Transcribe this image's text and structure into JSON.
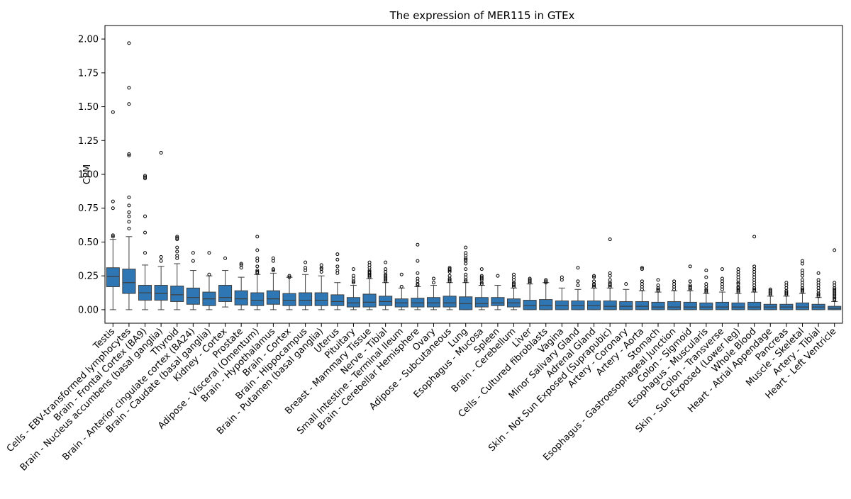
{
  "chart_data": {
    "type": "box",
    "title": "The expression of MER115 in GTEx",
    "xlabel": "",
    "ylabel": "CPM",
    "ylim": [
      -0.1,
      2.1
    ],
    "yticks": [
      0.0,
      0.25,
      0.5,
      0.75,
      1.0,
      1.25,
      1.5,
      1.75,
      2.0
    ],
    "ytick_labels": [
      "0.00",
      "0.25",
      "0.50",
      "0.75",
      "1.00",
      "1.25",
      "1.50",
      "1.75",
      "2.00"
    ],
    "box_color": "#2f77b4",
    "grid": false,
    "legend": "none",
    "categories": [
      "Testis",
      "Cells - EBV-transformed lymphocytes",
      "Brain - Frontal Cortex (BA9)",
      "Brain - Nucleus accumbens (basal ganglia)",
      "Thyroid",
      "Brain - Anterior cingulate cortex (BA24)",
      "Brain - Caudate (basal ganglia)",
      "Kidney - Cortex",
      "Prostate",
      "Adipose - Visceral (Omentum)",
      "Brain - Hypothalamus",
      "Brain - Cortex",
      "Brain - Hippocampus",
      "Brain - Putamen (basal ganglia)",
      "Uterus",
      "Pituitary",
      "Breast - Mammary Tissue",
      "Nerve - Tibial",
      "Small Intestine - Terminal Ileum",
      "Brain - Cerebellar Hemisphere",
      "Ovary",
      "Adipose - Subcutaneous",
      "Lung",
      "Esophagus - Mucosa",
      "Spleen",
      "Brain - Cerebellum",
      "Liver",
      "Cells - Cultured fibroblasts",
      "Vagina",
      "Minor Salivary Gland",
      "Adrenal Gland",
      "Skin - Not Sun Exposed (Suprapubic)",
      "Artery - Coronary",
      "Artery - Aorta",
      "Stomach",
      "Esophagus - Gastroesophageal Junction",
      "Colon - Sigmoid",
      "Esophagus - Muscularis",
      "Colon - Transverse",
      "Skin - Sun Exposed (Lower leg)",
      "Whole Blood",
      "Heart - Atrial Appendage",
      "Pancreas",
      "Muscle - Skeletal",
      "Artery - Tibial",
      "Heart - Left Ventricle"
    ],
    "boxes": [
      {
        "min": 0.0,
        "q1": 0.17,
        "median": 0.245,
        "q3": 0.31,
        "max": 0.52,
        "outliers": [
          1.46,
          0.8,
          0.75,
          0.55,
          0.54
        ]
      },
      {
        "min": 0.0,
        "q1": 0.12,
        "median": 0.2,
        "q3": 0.3,
        "max": 0.54,
        "outliers": [
          1.97,
          1.64,
          1.52,
          1.15,
          1.14,
          0.83,
          0.77,
          0.72,
          0.69,
          0.65,
          0.6
        ]
      },
      {
        "min": 0.0,
        "q1": 0.07,
        "median": 0.125,
        "q3": 0.18,
        "max": 0.33,
        "outliers": [
          0.99,
          0.98,
          0.97,
          0.69,
          0.57,
          0.42
        ]
      },
      {
        "min": 0.0,
        "q1": 0.07,
        "median": 0.12,
        "q3": 0.18,
        "max": 0.32,
        "outliers": [
          1.16,
          0.39,
          0.36
        ]
      },
      {
        "min": 0.0,
        "q1": 0.06,
        "median": 0.11,
        "q3": 0.175,
        "max": 0.34,
        "outliers": [
          0.54,
          0.53,
          0.52,
          0.46,
          0.43,
          0.4,
          0.38
        ]
      },
      {
        "min": 0.0,
        "q1": 0.04,
        "median": 0.09,
        "q3": 0.16,
        "max": 0.29,
        "outliers": [
          0.42,
          0.36
        ]
      },
      {
        "min": 0.0,
        "q1": 0.03,
        "median": 0.08,
        "q3": 0.13,
        "max": 0.25,
        "outliers": [
          0.42,
          0.26
        ]
      },
      {
        "min": 0.02,
        "q1": 0.06,
        "median": 0.09,
        "q3": 0.18,
        "max": 0.29,
        "outliers": [
          0.38
        ]
      },
      {
        "min": 0.0,
        "q1": 0.035,
        "median": 0.08,
        "q3": 0.14,
        "max": 0.24,
        "outliers": [
          0.34,
          0.33,
          0.31
        ]
      },
      {
        "min": 0.0,
        "q1": 0.03,
        "median": 0.07,
        "q3": 0.125,
        "max": 0.26,
        "outliers": [
          0.54,
          0.44,
          0.38,
          0.36,
          0.32,
          0.29,
          0.28,
          0.27
        ]
      },
      {
        "min": 0.0,
        "q1": 0.04,
        "median": 0.08,
        "q3": 0.14,
        "max": 0.27,
        "outliers": [
          0.38,
          0.36,
          0.3,
          0.29
        ]
      },
      {
        "min": 0.0,
        "q1": 0.03,
        "median": 0.07,
        "q3": 0.12,
        "max": 0.24,
        "outliers": [
          0.25,
          0.24
        ]
      },
      {
        "min": 0.0,
        "q1": 0.03,
        "median": 0.07,
        "q3": 0.125,
        "max": 0.26,
        "outliers": [
          0.35,
          0.31,
          0.29
        ]
      },
      {
        "min": 0.0,
        "q1": 0.03,
        "median": 0.07,
        "q3": 0.125,
        "max": 0.25,
        "outliers": [
          0.33,
          0.31,
          0.3,
          0.28
        ]
      },
      {
        "min": 0.0,
        "q1": 0.03,
        "median": 0.06,
        "q3": 0.11,
        "max": 0.2,
        "outliers": [
          0.41,
          0.37,
          0.32,
          0.29,
          0.27
        ]
      },
      {
        "min": 0.0,
        "q1": 0.02,
        "median": 0.05,
        "q3": 0.09,
        "max": 0.18,
        "outliers": [
          0.3,
          0.25,
          0.23,
          0.21,
          0.2
        ]
      },
      {
        "min": 0.0,
        "q1": 0.02,
        "median": 0.055,
        "q3": 0.115,
        "max": 0.23,
        "outliers": [
          0.35,
          0.33,
          0.31,
          0.29,
          0.28,
          0.27,
          0.26,
          0.25,
          0.24
        ]
      },
      {
        "min": 0.0,
        "q1": 0.03,
        "median": 0.06,
        "q3": 0.1,
        "max": 0.2,
        "outliers": [
          0.35,
          0.3,
          0.28,
          0.26,
          0.25,
          0.24,
          0.23,
          0.22,
          0.21
        ]
      },
      {
        "min": 0.0,
        "q1": 0.02,
        "median": 0.05,
        "q3": 0.08,
        "max": 0.16,
        "outliers": [
          0.26,
          0.17
        ]
      },
      {
        "min": 0.0,
        "q1": 0.02,
        "median": 0.05,
        "q3": 0.085,
        "max": 0.17,
        "outliers": [
          0.48,
          0.36,
          0.27,
          0.23,
          0.21,
          0.19,
          0.18
        ]
      },
      {
        "min": 0.0,
        "q1": 0.02,
        "median": 0.05,
        "q3": 0.09,
        "max": 0.18,
        "outliers": [
          0.23,
          0.2
        ]
      },
      {
        "min": 0.0,
        "q1": 0.02,
        "median": 0.05,
        "q3": 0.1,
        "max": 0.2,
        "outliers": [
          0.31,
          0.3,
          0.29,
          0.28,
          0.25,
          0.23,
          0.22,
          0.21
        ]
      },
      {
        "min": 0.0,
        "q1": 0.0,
        "median": 0.045,
        "q3": 0.095,
        "max": 0.2,
        "outliers": [
          0.46,
          0.42,
          0.4,
          0.38,
          0.37,
          0.36,
          0.34,
          0.3,
          0.26,
          0.24,
          0.22,
          0.21
        ]
      },
      {
        "min": 0.0,
        "q1": 0.02,
        "median": 0.045,
        "q3": 0.09,
        "max": 0.18,
        "outliers": [
          0.3,
          0.25,
          0.24,
          0.23,
          0.22,
          0.2,
          0.19
        ]
      },
      {
        "min": 0.0,
        "q1": 0.03,
        "median": 0.05,
        "q3": 0.09,
        "max": 0.18,
        "outliers": [
          0.25
        ]
      },
      {
        "min": 0.0,
        "q1": 0.02,
        "median": 0.05,
        "q3": 0.08,
        "max": 0.16,
        "outliers": [
          0.26,
          0.24,
          0.22,
          0.2,
          0.19,
          0.18,
          0.17
        ]
      },
      {
        "min": 0.0,
        "q1": 0.0,
        "median": 0.03,
        "q3": 0.07,
        "max": 0.19,
        "outliers": [
          0.23,
          0.22,
          0.21,
          0.2
        ]
      },
      {
        "min": 0.0,
        "q1": 0.0,
        "median": 0.03,
        "q3": 0.075,
        "max": 0.2,
        "outliers": [
          0.22,
          0.21,
          0.2
        ]
      },
      {
        "min": 0.0,
        "q1": 0.0,
        "median": 0.03,
        "q3": 0.065,
        "max": 0.16,
        "outliers": [
          0.24,
          0.22
        ]
      },
      {
        "min": 0.0,
        "q1": 0.0,
        "median": 0.03,
        "q3": 0.065,
        "max": 0.15,
        "outliers": [
          0.31,
          0.21,
          0.18
        ]
      },
      {
        "min": 0.0,
        "q1": 0.0,
        "median": 0.03,
        "q3": 0.065,
        "max": 0.16,
        "outliers": [
          0.25,
          0.24,
          0.21,
          0.19,
          0.18,
          0.17
        ]
      },
      {
        "min": 0.0,
        "q1": 0.0,
        "median": 0.025,
        "q3": 0.065,
        "max": 0.16,
        "outliers": [
          0.52,
          0.27,
          0.25,
          0.22,
          0.2,
          0.19,
          0.18,
          0.17
        ]
      },
      {
        "min": 0.0,
        "q1": 0.0,
        "median": 0.025,
        "q3": 0.06,
        "max": 0.15,
        "outliers": [
          0.19
        ]
      },
      {
        "min": 0.0,
        "q1": 0.0,
        "median": 0.025,
        "q3": 0.06,
        "max": 0.14,
        "outliers": [
          0.31,
          0.3,
          0.21,
          0.19,
          0.17,
          0.15
        ]
      },
      {
        "min": 0.0,
        "q1": 0.0,
        "median": 0.02,
        "q3": 0.055,
        "max": 0.13,
        "outliers": [
          0.22,
          0.18,
          0.16,
          0.15,
          0.14
        ]
      },
      {
        "min": 0.0,
        "q1": 0.0,
        "median": 0.02,
        "q3": 0.06,
        "max": 0.14,
        "outliers": [
          0.21,
          0.19,
          0.17,
          0.15
        ]
      },
      {
        "min": 0.0,
        "q1": 0.0,
        "median": 0.02,
        "q3": 0.055,
        "max": 0.14,
        "outliers": [
          0.32,
          0.21,
          0.18,
          0.17,
          0.16,
          0.15
        ]
      },
      {
        "min": 0.0,
        "q1": 0.0,
        "median": 0.02,
        "q3": 0.05,
        "max": 0.12,
        "outliers": [
          0.29,
          0.24,
          0.19,
          0.17,
          0.15,
          0.14,
          0.13
        ]
      },
      {
        "min": 0.0,
        "q1": 0.0,
        "median": 0.02,
        "q3": 0.055,
        "max": 0.13,
        "outliers": [
          0.3,
          0.23,
          0.21,
          0.19,
          0.17,
          0.15
        ]
      },
      {
        "min": 0.0,
        "q1": 0.0,
        "median": 0.02,
        "q3": 0.05,
        "max": 0.12,
        "outliers": [
          0.3,
          0.28,
          0.26,
          0.24,
          0.22,
          0.2,
          0.19,
          0.17,
          0.16,
          0.15,
          0.14,
          0.13
        ]
      },
      {
        "min": 0.0,
        "q1": 0.0,
        "median": 0.02,
        "q3": 0.055,
        "max": 0.13,
        "outliers": [
          0.54,
          0.32,
          0.3,
          0.28,
          0.26,
          0.24,
          0.22,
          0.2,
          0.18,
          0.16,
          0.15,
          0.14
        ]
      },
      {
        "min": 0.0,
        "q1": 0.0,
        "median": 0.02,
        "q3": 0.04,
        "max": 0.1,
        "outliers": [
          0.15,
          0.14,
          0.13,
          0.12,
          0.11
        ]
      },
      {
        "min": 0.0,
        "q1": 0.0,
        "median": 0.02,
        "q3": 0.04,
        "max": 0.1,
        "outliers": [
          0.2,
          0.18,
          0.16,
          0.14,
          0.13,
          0.12,
          0.11
        ]
      },
      {
        "min": 0.0,
        "q1": 0.0,
        "median": 0.02,
        "q3": 0.05,
        "max": 0.12,
        "outliers": [
          0.36,
          0.34,
          0.29,
          0.27,
          0.25,
          0.22,
          0.2,
          0.18,
          0.16,
          0.15,
          0.14,
          0.13
        ]
      },
      {
        "min": 0.0,
        "q1": 0.0,
        "median": 0.02,
        "q3": 0.04,
        "max": 0.09,
        "outliers": [
          0.27,
          0.22,
          0.2,
          0.18,
          0.16,
          0.14,
          0.12,
          0.11,
          0.1
        ]
      },
      {
        "min": 0.0,
        "q1": 0.0,
        "median": 0.01,
        "q3": 0.025,
        "max": 0.06,
        "outliers": [
          0.44,
          0.2,
          0.18,
          0.16,
          0.15,
          0.14,
          0.13,
          0.12,
          0.11,
          0.1,
          0.09,
          0.08,
          0.07
        ]
      }
    ]
  }
}
